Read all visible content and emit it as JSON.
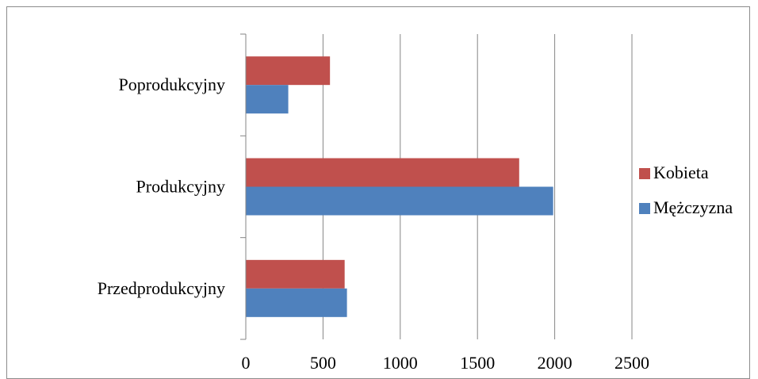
{
  "chart_data": {
    "type": "bar",
    "orientation": "horizontal",
    "categories": [
      "Przedprodukcyjny",
      "Produkcyjny",
      "Poprodukcyjny"
    ],
    "series": [
      {
        "name": "Mężczyzna",
        "color": "#4F81BD",
        "values": [
          655,
          1990,
          275
        ]
      },
      {
        "name": "Kobieta",
        "color": "#C0504D",
        "values": [
          640,
          1770,
          545
        ]
      }
    ],
    "xlim": [
      0,
      2500
    ],
    "xticks": [
      "0",
      "500",
      "1000",
      "1500",
      "2000",
      "2500"
    ],
    "grid": "vertical major gridlines",
    "legend_position": "right",
    "legend": [
      "Kobieta",
      "Mężczyzna"
    ]
  }
}
